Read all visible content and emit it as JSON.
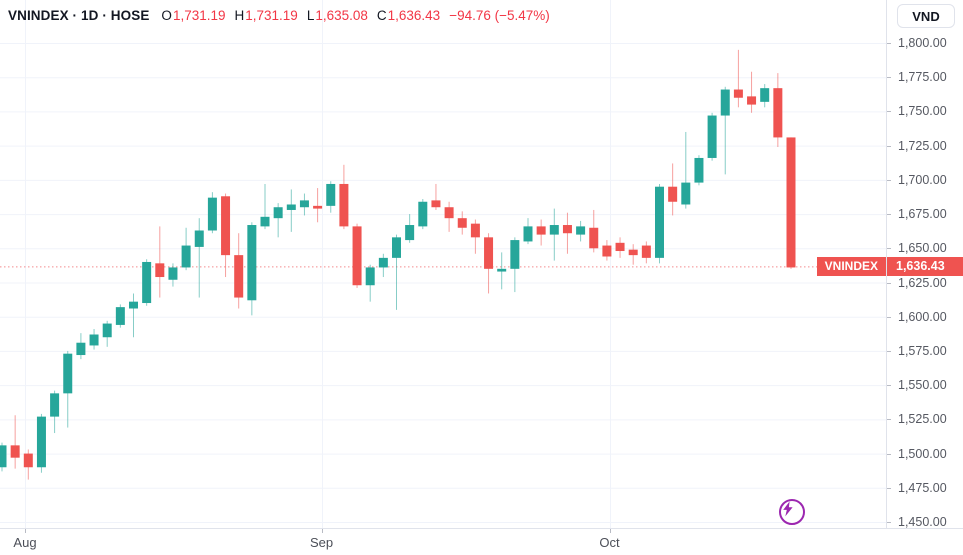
{
  "header": {
    "instrument": "VNINDEX · 1D · HOSE",
    "ohlc": {
      "o": {
        "label": "O",
        "value": "1,731.19"
      },
      "h": {
        "label": "H",
        "value": "1,731.19"
      },
      "l": {
        "label": "L",
        "value": "1,635.08"
      },
      "c": {
        "label": "C",
        "value": "1,636.43"
      }
    },
    "change": "−94.76 (−5.47%)"
  },
  "price_axis": {
    "currency_button": "VND",
    "ticks": [
      "1,800.00",
      "1,775.00",
      "1,750.00",
      "1,725.00",
      "1,700.00",
      "1,675.00",
      "1,650.00",
      "1,625.00",
      "1,600.00",
      "1,575.00",
      "1,550.00",
      "1,525.00",
      "1,500.00",
      "1,475.00",
      "1,450.00"
    ],
    "last_price_tag": "1,636.43"
  },
  "time_axis": {
    "ticks": [
      {
        "label": "Aug",
        "candle_index": 1.75
      },
      {
        "label": "Sep",
        "candle_index": 24.3
      },
      {
        "label": "Oct",
        "candle_index": 46.2
      }
    ]
  },
  "price_line": {
    "symbol_tag": "VNINDEX",
    "value_tag": "1,636.43"
  },
  "chart_data": {
    "type": "candlestick",
    "title": "VNINDEX · 1D · HOSE",
    "symbol": "VNINDEX",
    "interval": "1D",
    "exchange": "HOSE",
    "ylabel": "VND",
    "ylim": [
      1450,
      1800
    ],
    "y_tick_step": 25,
    "grid": true,
    "current_price": 1636.43,
    "last_candle": {
      "open": 1731.19,
      "high": 1731.19,
      "low": 1635.08,
      "close": 1636.43,
      "change": -94.76,
      "change_pct": -5.47
    },
    "x_month_ticks": [
      {
        "label": "Aug",
        "candle_index": 1.75
      },
      {
        "label": "Sep",
        "candle_index": 24.3
      },
      {
        "label": "Oct",
        "candle_index": 46.2
      }
    ],
    "candles_ohlc": [
      [
        1490,
        1508,
        1487,
        1506
      ],
      [
        1506,
        1528,
        1489,
        1497
      ],
      [
        1500,
        1503,
        1481,
        1490
      ],
      [
        1490,
        1529,
        1486,
        1527
      ],
      [
        1527,
        1546,
        1515,
        1544
      ],
      [
        1544,
        1575,
        1519,
        1573
      ],
      [
        1572,
        1588,
        1569,
        1581
      ],
      [
        1579,
        1591,
        1576,
        1587
      ],
      [
        1585,
        1597,
        1578,
        1595
      ],
      [
        1594,
        1609,
        1592,
        1607
      ],
      [
        1606,
        1617,
        1585,
        1611
      ],
      [
        1610,
        1642,
        1608,
        1640
      ],
      [
        1639,
        1666,
        1614,
        1629
      ],
      [
        1627,
        1639,
        1622,
        1636
      ],
      [
        1636,
        1665,
        1634,
        1652
      ],
      [
        1651,
        1672,
        1614,
        1663
      ],
      [
        1663,
        1691,
        1661,
        1687
      ],
      [
        1688,
        1690,
        1629,
        1645
      ],
      [
        1645,
        1661,
        1606,
        1614
      ],
      [
        1612,
        1669,
        1601,
        1667
      ],
      [
        1666,
        1697,
        1664,
        1673
      ],
      [
        1672,
        1683,
        1658,
        1680
      ],
      [
        1678,
        1693,
        1662,
        1682
      ],
      [
        1680,
        1690,
        1674,
        1685
      ],
      [
        1681,
        1694,
        1669,
        1679
      ],
      [
        1681,
        1699,
        1676,
        1697
      ],
      [
        1697,
        1711,
        1664,
        1666
      ],
      [
        1666,
        1668,
        1621,
        1623
      ],
      [
        1623,
        1638,
        1611,
        1636
      ],
      [
        1636,
        1646,
        1629,
        1643
      ],
      [
        1643,
        1660,
        1605,
        1658
      ],
      [
        1656,
        1675,
        1654,
        1667
      ],
      [
        1666,
        1686,
        1664,
        1684
      ],
      [
        1685,
        1697,
        1678,
        1680
      ],
      [
        1680,
        1684,
        1662,
        1672
      ],
      [
        1672,
        1677,
        1660,
        1665
      ],
      [
        1668,
        1671,
        1646,
        1658
      ],
      [
        1658,
        1661,
        1617,
        1635
      ],
      [
        1633,
        1647,
        1620,
        1635
      ],
      [
        1635,
        1658,
        1618,
        1656
      ],
      [
        1655,
        1672,
        1653,
        1666
      ],
      [
        1666,
        1671,
        1652,
        1660
      ],
      [
        1660,
        1679,
        1641,
        1667
      ],
      [
        1667,
        1676,
        1646,
        1661
      ],
      [
        1660,
        1670,
        1655,
        1666
      ],
      [
        1665,
        1678,
        1647,
        1650
      ],
      [
        1652,
        1656,
        1641,
        1644
      ],
      [
        1654,
        1658,
        1643,
        1648
      ],
      [
        1649,
        1653,
        1638,
        1645
      ],
      [
        1652,
        1655,
        1639,
        1643
      ],
      [
        1643,
        1697,
        1639,
        1695
      ],
      [
        1695,
        1712,
        1674,
        1684
      ],
      [
        1682,
        1735,
        1679,
        1698
      ],
      [
        1698,
        1718,
        1696,
        1716
      ],
      [
        1716,
        1749,
        1714,
        1747
      ],
      [
        1747,
        1768,
        1704,
        1766
      ],
      [
        1766,
        1795,
        1753,
        1760
      ],
      [
        1761,
        1779,
        1749,
        1755
      ],
      [
        1757,
        1770,
        1753,
        1767
      ],
      [
        1767,
        1778,
        1724,
        1731
      ],
      [
        1731,
        1731,
        1635,
        1636
      ]
    ],
    "colors": {
      "up": "#26a69a",
      "down": "#ef5350",
      "grid": "#f0f3fa",
      "price_line": "#f48b8d",
      "tag_bg": "#ef5350",
      "value_text": "#f23645",
      "quick_trade": "#9c27b0"
    }
  }
}
